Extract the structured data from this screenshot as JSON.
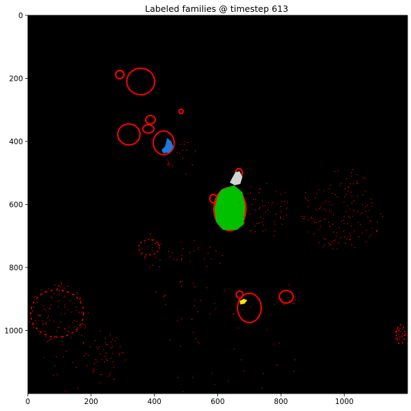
{
  "figure": {
    "title": "Labeled families @ timestep 613"
  },
  "chart_data": {
    "type": "heatmap",
    "title": "Labeled families @ timestep 613",
    "xlabel": "",
    "ylabel": "",
    "xlim": [
      0,
      1200
    ],
    "ylim": [
      1200,
      0
    ],
    "x_ticks": [
      "0",
      "200",
      "400",
      "600",
      "800",
      "1000"
    ],
    "y_ticks": [
      "0",
      "200",
      "400",
      "600",
      "800",
      "1000"
    ],
    "y_axis_inverted": true,
    "background_color": "#000000",
    "colors": {
      "outline": "#ff0000",
      "green_family": "#00c000",
      "blue_family": "#1e78d8",
      "grey_family": "#d3d3d3",
      "yellow_family": "#ffe600"
    }
  }
}
